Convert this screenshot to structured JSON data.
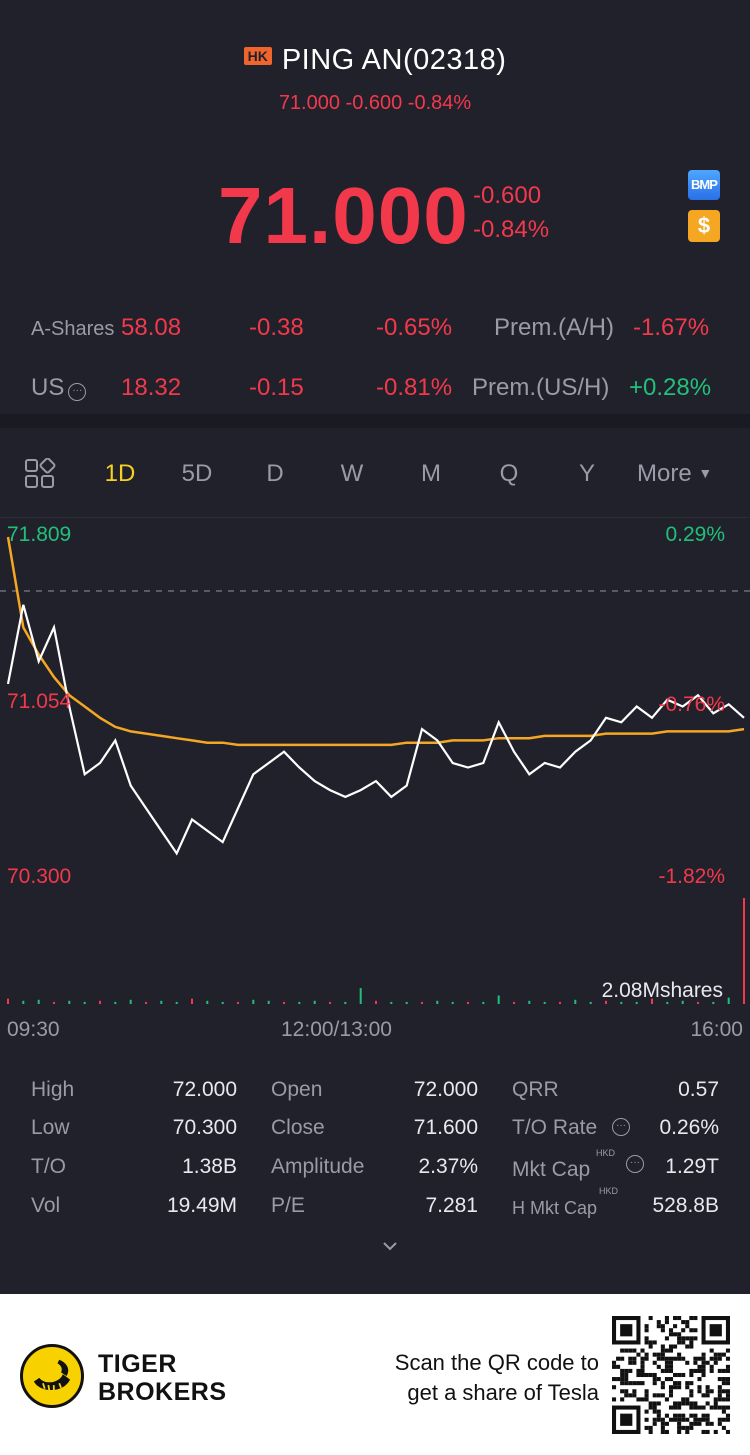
{
  "header": {
    "market_badge": "HK",
    "title": "PING AN(02318)",
    "subtitle": "71.000 -0.600 -0.84%"
  },
  "quote": {
    "price": "71.000",
    "change": "-0.600",
    "change_pct": "-0.84%",
    "bmp_icon_label": "BMP",
    "usd_icon_label": "$"
  },
  "a_shares": {
    "label": "A-Shares",
    "price": "58.08",
    "change": "-0.38",
    "change_pct": "-0.65%",
    "prem_label": "Prem.(A/H)",
    "prem_value": "-1.67%"
  },
  "us": {
    "label": "US",
    "price": "18.32",
    "change": "-0.15",
    "change_pct": "-0.81%",
    "prem_label": "Prem.(US/H)",
    "prem_value": "+0.28%"
  },
  "tabs": [
    "1D",
    "5D",
    "D",
    "W",
    "M",
    "Q",
    "Y"
  ],
  "tabs_active": "1D",
  "more_label": "More",
  "chart_labels": {
    "high_price": "71.809",
    "high_pct": "0.29%",
    "mid_price": "71.054",
    "mid_pct": "-0.76%",
    "low_price": "70.300",
    "low_pct": "-1.82%",
    "volume_label": "2.08Mshares",
    "time_start": "09:30",
    "time_mid": "12:00/13:00",
    "time_end": "16:00"
  },
  "chart_data": {
    "type": "line",
    "x_range": [
      "09:30",
      "16:00"
    ],
    "ylim": [
      70.3,
      71.809
    ],
    "prev_close": 71.6,
    "series": [
      {
        "name": "",
        "color": "#ffffff",
        "values": [
          71.15,
          71.5,
          71.25,
          71.4,
          71.05,
          70.75,
          70.8,
          70.9,
          70.7,
          70.6,
          70.5,
          70.4,
          70.55,
          70.5,
          70.45,
          70.6,
          70.75,
          70.8,
          70.85,
          70.78,
          70.72,
          70.68,
          70.65,
          70.68,
          70.72,
          70.65,
          70.7,
          70.95,
          70.9,
          70.8,
          70.78,
          70.8,
          70.98,
          70.85,
          70.75,
          70.8,
          70.78,
          70.85,
          70.9,
          71.0,
          70.98,
          71.05,
          71.0,
          71.08,
          71.05,
          71.1,
          71.02,
          71.06,
          71.0
        ]
      },
      {
        "name": "",
        "color": "#f5a623",
        "values": [
          71.8,
          71.4,
          71.28,
          71.18,
          71.1,
          71.05,
          71.0,
          70.96,
          70.94,
          70.93,
          70.92,
          70.91,
          70.9,
          70.89,
          70.89,
          70.88,
          70.88,
          70.88,
          70.88,
          70.88,
          70.88,
          70.88,
          70.88,
          70.88,
          70.88,
          70.88,
          70.89,
          70.89,
          70.89,
          70.9,
          70.9,
          70.9,
          70.91,
          70.91,
          70.91,
          70.92,
          70.92,
          70.92,
          70.92,
          70.93,
          70.93,
          70.93,
          70.93,
          70.94,
          70.94,
          70.94,
          70.94,
          70.94,
          70.95
        ]
      }
    ],
    "volume_series": {
      "name": "2.08Mshares",
      "values": [
        0.05,
        0.03,
        0.04,
        0.02,
        0.03,
        0.02,
        0.03,
        0.02,
        0.04,
        0.02,
        0.03,
        0.02,
        0.05,
        0.03,
        0.02,
        0.02,
        0.04,
        0.03,
        0.02,
        0.02,
        0.03,
        0.02,
        0.02,
        0.15,
        0.03,
        0.02,
        0.02,
        0.02,
        0.03,
        0.02,
        0.02,
        0.02,
        0.08,
        0.02,
        0.03,
        0.02,
        0.02,
        0.04,
        0.02,
        0.03,
        0.02,
        0.02,
        0.05,
        0.02,
        0.03,
        0.02,
        0.02,
        0.06,
        1.0
      ]
    }
  },
  "stats": {
    "high_label": "High",
    "high_value": "72.000",
    "low_label": "Low",
    "low_value": "70.300",
    "to_label": "T/O",
    "to_value": "1.38B",
    "vol_label": "Vol",
    "vol_value": "19.49M",
    "open_label": "Open",
    "open_value": "72.000",
    "close_label": "Close",
    "close_value": "71.600",
    "amp_label": "Amplitude",
    "amp_value": "2.37%",
    "pe_label": "P/E",
    "pe_value": "7.281",
    "qrr_label": "QRR",
    "qrr_value": "0.57",
    "torate_label": "T/O Rate",
    "torate_value": "0.26%",
    "mktcap_label": "Mkt Cap",
    "mktcap_value": "1.29T",
    "hmktcap_label": "H Mkt Cap",
    "hmktcap_value": "528.8B",
    "currency_sup": "HKD"
  },
  "footer": {
    "brand_line1": "TIGER",
    "brand_line2": "BROKERS",
    "scan_line1": "Scan the QR code to",
    "scan_line2": "get a share of Tesla"
  },
  "colors": {
    "background": "#21212b",
    "down": "#f2394b",
    "up": "#21c07a",
    "active_tab": "#f4d21f",
    "avg_line": "#f5a623"
  }
}
